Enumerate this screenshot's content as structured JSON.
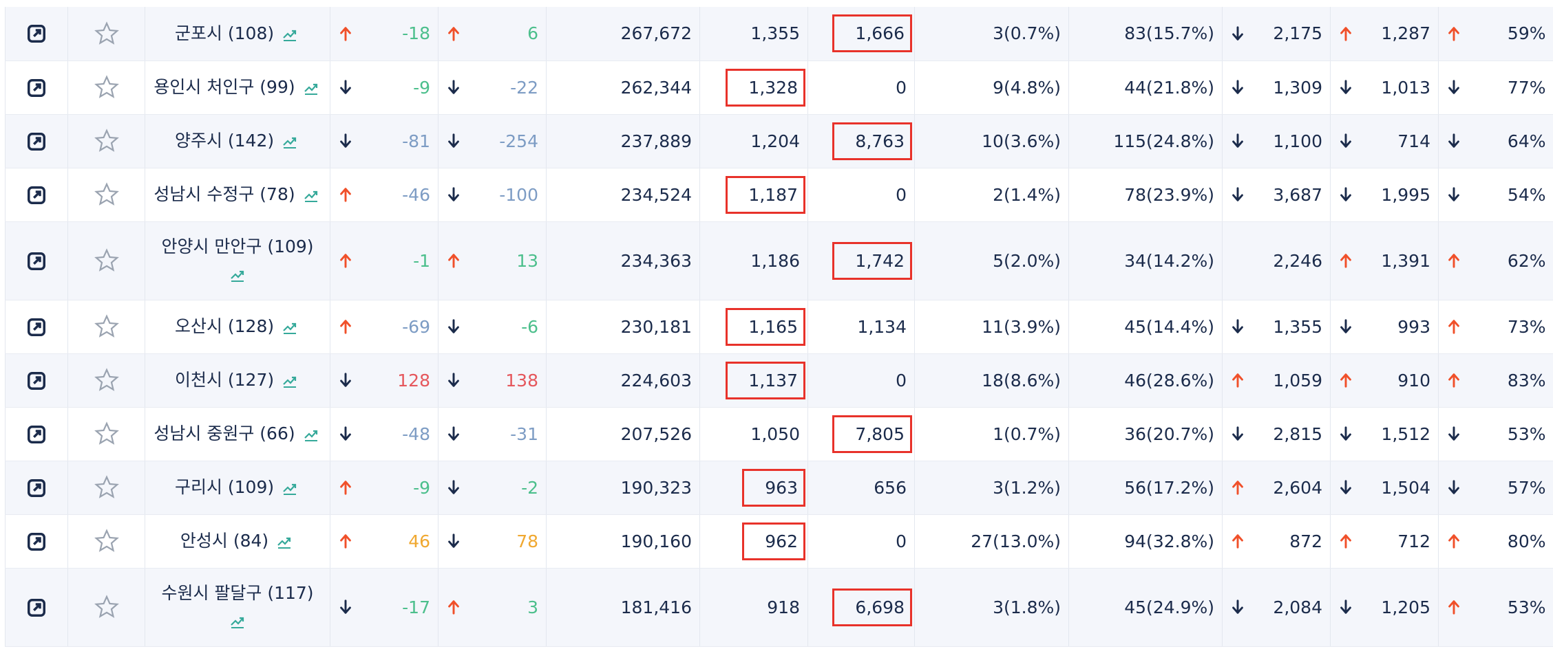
{
  "table": {
    "colors": {
      "green": "#4cbf8c",
      "blue": "#7d9cc4",
      "red": "#e5575c",
      "orange": "#f0a830"
    },
    "rows": [
      {
        "name": "군포시 (108)",
        "a1": "up",
        "v1": "-18",
        "k1": "green",
        "a2": "up",
        "v2": "6",
        "k2": "green",
        "c5": "267,672",
        "c6": "1,355",
        "c7": "1,666",
        "c8": "3(0.7%)",
        "c9": "83(15.7%)",
        "a10": "down",
        "c10": "2,175",
        "a11": "up",
        "c11": "1,287",
        "a12": "up",
        "c12": "59%",
        "boxed": "c7"
      },
      {
        "name": "용인시 처인구 (99)",
        "a1": "down",
        "v1": "-9",
        "k1": "green",
        "a2": "down",
        "v2": "-22",
        "k2": "blue",
        "c5": "262,344",
        "c6": "1,328",
        "c7": "0",
        "c8": "9(4.8%)",
        "c9": "44(21.8%)",
        "a10": "down",
        "c10": "1,309",
        "a11": "down",
        "c11": "1,013",
        "a12": "down",
        "c12": "77%",
        "boxed": "c6"
      },
      {
        "name": "양주시 (142)",
        "a1": "down",
        "v1": "-81",
        "k1": "blue",
        "a2": "down",
        "v2": "-254",
        "k2": "blue",
        "c5": "237,889",
        "c6": "1,204",
        "c7": "8,763",
        "c8": "10(3.6%)",
        "c9": "115(24.8%)",
        "a10": "down",
        "c10": "1,100",
        "a11": "down",
        "c11": "714",
        "a12": "down",
        "c12": "64%",
        "boxed": "c7"
      },
      {
        "name": "성남시 수정구 (78)",
        "a1": "up",
        "v1": "-46",
        "k1": "blue",
        "a2": "down",
        "v2": "-100",
        "k2": "blue",
        "c5": "234,524",
        "c6": "1,187",
        "c7": "0",
        "c8": "2(1.4%)",
        "c9": "78(23.9%)",
        "a10": "down",
        "c10": "3,687",
        "a11": "down",
        "c11": "1,995",
        "a12": "down",
        "c12": "54%",
        "boxed": "c6"
      },
      {
        "name": "안양시 만안구 (109)",
        "a1": "up",
        "v1": "-1",
        "k1": "green",
        "a2": "up",
        "v2": "13",
        "k2": "green",
        "c5": "234,363",
        "c6": "1,186",
        "c7": "1,742",
        "c8": "5(2.0%)",
        "c9": "34(14.2%)",
        "a10": null,
        "c10": "2,246",
        "a11": "up",
        "c11": "1,391",
        "a12": "up",
        "c12": "62%",
        "boxed": "c7"
      },
      {
        "name": "오산시 (128)",
        "a1": "up",
        "v1": "-69",
        "k1": "blue",
        "a2": "down",
        "v2": "-6",
        "k2": "green",
        "c5": "230,181",
        "c6": "1,165",
        "c7": "1,134",
        "c8": "11(3.9%)",
        "c9": "45(14.4%)",
        "a10": "down",
        "c10": "1,355",
        "a11": "down",
        "c11": "993",
        "a12": "up",
        "c12": "73%",
        "boxed": "c6"
      },
      {
        "name": "이천시 (127)",
        "a1": "down",
        "v1": "128",
        "k1": "red",
        "a2": "down",
        "v2": "138",
        "k2": "red",
        "c5": "224,603",
        "c6": "1,137",
        "c7": "0",
        "c8": "18(8.6%)",
        "c9": "46(28.6%)",
        "a10": "up",
        "c10": "1,059",
        "a11": "up",
        "c11": "910",
        "a12": "up",
        "c12": "83%",
        "boxed": "c6"
      },
      {
        "name": "성남시 중원구 (66)",
        "a1": "down",
        "v1": "-48",
        "k1": "blue",
        "a2": "down",
        "v2": "-31",
        "k2": "blue",
        "c5": "207,526",
        "c6": "1,050",
        "c7": "7,805",
        "c8": "1(0.7%)",
        "c9": "36(20.7%)",
        "a10": "down",
        "c10": "2,815",
        "a11": "down",
        "c11": "1,512",
        "a12": "down",
        "c12": "53%",
        "boxed": "c7"
      },
      {
        "name": "구리시 (109)",
        "a1": "up",
        "v1": "-9",
        "k1": "green",
        "a2": "down",
        "v2": "-2",
        "k2": "green",
        "c5": "190,323",
        "c6": "963",
        "c7": "656",
        "c8": "3(1.2%)",
        "c9": "56(17.2%)",
        "a10": "up",
        "c10": "2,604",
        "a11": "down",
        "c11": "1,504",
        "a12": "down",
        "c12": "57%",
        "boxed": "c6"
      },
      {
        "name": "안성시 (84)",
        "a1": "up",
        "v1": "46",
        "k1": "orange",
        "a2": "down",
        "v2": "78",
        "k2": "orange",
        "c5": "190,160",
        "c6": "962",
        "c7": "0",
        "c8": "27(13.0%)",
        "c9": "94(32.8%)",
        "a10": "up",
        "c10": "872",
        "a11": "up",
        "c11": "712",
        "a12": "up",
        "c12": "80%",
        "boxed": "c6"
      },
      {
        "name": "수원시 팔달구 (117)",
        "a1": "down",
        "v1": "-17",
        "k1": "green",
        "a2": "up",
        "v2": "3",
        "k2": "green",
        "c5": "181,416",
        "c6": "918",
        "c7": "6,698",
        "c8": "3(1.8%)",
        "c9": "45(24.9%)",
        "a10": "down",
        "c10": "2,084",
        "a11": "down",
        "c11": "1,205",
        "a12": "up",
        "c12": "53%",
        "boxed": "c7"
      }
    ]
  }
}
